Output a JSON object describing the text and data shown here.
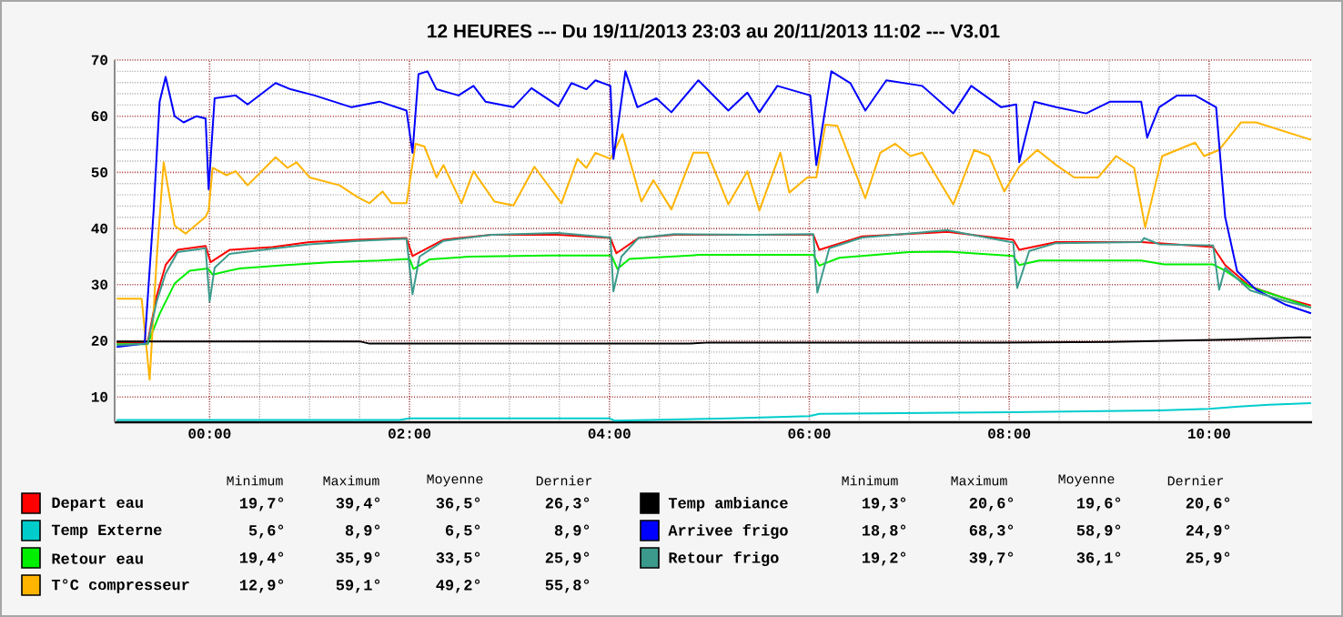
{
  "chart_data": {
    "type": "line",
    "title": "12 HEURES --- Du 19/11/2013 23:03 au 20/11/2013 11:02 --- V3.01",
    "xlim": [
      -0.95,
      11.03
    ],
    "ylim": [
      5.5,
      70
    ],
    "xticks": [
      {
        "value": 0,
        "label": "00:00"
      },
      {
        "value": 2,
        "label": "02:00"
      },
      {
        "value": 4,
        "label": "04:00"
      },
      {
        "value": 6,
        "label": "06:00"
      },
      {
        "value": 8,
        "label": "08:00"
      },
      {
        "value": 10,
        "label": "10:00"
      }
    ],
    "yticks": [
      10,
      20,
      30,
      40,
      50,
      60,
      70
    ],
    "grid": true,
    "legend": "bottom",
    "series": [
      {
        "name": "Depart eau",
        "color": "#ff0000",
        "x": [
          -0.93,
          -0.62,
          -0.53,
          -0.44,
          -0.32,
          -0.04,
          0.01,
          0.2,
          0.63,
          1.0,
          1.48,
          1.97,
          2.03,
          2.34,
          2.82,
          3.49,
          4.01,
          4.07,
          4.29,
          4.65,
          5.44,
          6.04,
          6.1,
          6.53,
          7.38,
          8.04,
          8.1,
          8.47,
          9.32,
          10.04,
          10.16,
          10.41,
          10.77,
          11.02
        ],
        "values": [
          19.7,
          19.7,
          28,
          33.5,
          36.2,
          36.9,
          34,
          36.2,
          36.7,
          37.6,
          38,
          38.3,
          35.1,
          38,
          38.9,
          38.9,
          38.3,
          35.6,
          38.3,
          38.9,
          38.9,
          38.9,
          36.2,
          38.6,
          39.4,
          38,
          36.2,
          37.6,
          37.6,
          36.7,
          33.5,
          29.7,
          27.5,
          26.3
        ]
      },
      {
        "name": "Temp Externe",
        "color": "#00cccc",
        "x": [
          -0.93,
          1.9,
          2.0,
          4.0,
          4.05,
          5.2,
          6.0,
          6.1,
          8.0,
          9.5,
          10.0,
          10.3,
          10.6,
          11.02
        ],
        "values": [
          5.9,
          5.9,
          6.2,
          6.2,
          5.8,
          6.2,
          6.6,
          7.0,
          7.3,
          7.6,
          7.9,
          8.3,
          8.6,
          8.9
        ]
      },
      {
        "name": "Retour eau",
        "color": "#00ee00",
        "x": [
          -0.93,
          -0.62,
          -0.5,
          -0.35,
          -0.2,
          -0.02,
          0.03,
          0.3,
          0.7,
          1.2,
          1.7,
          2.0,
          2.04,
          2.2,
          2.6,
          3.4,
          4.02,
          4.08,
          4.2,
          4.9,
          5.44,
          6.04,
          6.1,
          6.3,
          7.0,
          7.38,
          8.04,
          8.1,
          8.3,
          9.32,
          9.55,
          10.04,
          10.16,
          10.41,
          10.77,
          11.02
        ],
        "values": [
          19.4,
          19.4,
          24.8,
          30.2,
          32.5,
          32.9,
          31.8,
          32.9,
          33.4,
          34,
          34.3,
          34.6,
          32.8,
          34.5,
          35,
          35.2,
          35.2,
          32.8,
          34.6,
          35.3,
          35.3,
          35.3,
          33.4,
          34.8,
          35.8,
          35.9,
          35.1,
          33.5,
          34.3,
          34.3,
          33.6,
          33.6,
          32.5,
          29.6,
          27.5,
          25.9
        ]
      },
      {
        "name": "T°C compresseur",
        "color": "#ffb400",
        "x": [
          -0.93,
          -0.68,
          -0.6,
          -0.53,
          -0.46,
          -0.35,
          -0.24,
          -0.04,
          -0.01,
          0.03,
          0.17,
          0.26,
          0.38,
          0.66,
          0.78,
          0.87,
          1.0,
          1.3,
          1.48,
          1.6,
          1.73,
          1.82,
          1.97,
          2.06,
          2.15,
          2.27,
          2.34,
          2.52,
          2.64,
          2.85,
          3.04,
          3.25,
          3.46,
          3.52,
          3.68,
          3.77,
          3.86,
          4.01,
          4.13,
          4.32,
          4.44,
          4.62,
          4.84,
          4.98,
          5.19,
          5.38,
          5.5,
          5.71,
          5.8,
          5.98,
          6.07,
          6.16,
          6.28,
          6.56,
          6.71,
          6.86,
          7.01,
          7.13,
          7.44,
          7.65,
          7.8,
          7.95,
          8.1,
          8.28,
          8.47,
          8.65,
          8.89,
          9.07,
          9.25,
          9.36,
          9.53,
          9.86,
          9.95,
          10.1,
          10.32,
          10.47,
          11.02
        ],
        "values": [
          27.5,
          27.5,
          13.1,
          34.5,
          51.8,
          40.5,
          39.1,
          42.1,
          43.2,
          50.8,
          49.5,
          50.2,
          47.7,
          52.7,
          50.8,
          51.8,
          49.1,
          47.7,
          45.6,
          44.5,
          46.6,
          44.5,
          44.5,
          55.1,
          54.6,
          49.1,
          51.3,
          44.5,
          50.2,
          44.8,
          44.1,
          51,
          45.9,
          44.5,
          52.4,
          50.8,
          53.5,
          52.4,
          56.8,
          44.8,
          48.6,
          43.4,
          53.5,
          53.5,
          44.3,
          50.2,
          43.2,
          53.5,
          46.4,
          49.1,
          49.1,
          58.5,
          58.3,
          45.4,
          53.5,
          55.1,
          52.9,
          53.5,
          44.3,
          54,
          52.9,
          46.6,
          51,
          54,
          51.3,
          49.1,
          49.1,
          52.9,
          50.8,
          40.2,
          52.9,
          55.3,
          52.9,
          54,
          58.9,
          58.9,
          55.8
        ]
      },
      {
        "name": "Temp ambiance",
        "color": "#000000",
        "x": [
          -0.93,
          1.5,
          1.6,
          4.8,
          5.0,
          7.9,
          9.0,
          10.16,
          10.9,
          11.02
        ],
        "values": [
          19.9,
          19.9,
          19.5,
          19.5,
          19.7,
          19.7,
          19.8,
          20.2,
          20.6,
          20.6
        ]
      },
      {
        "name": "Arrivee frigo",
        "color": "#0000ff",
        "x": [
          -0.93,
          -0.65,
          -0.56,
          -0.5,
          -0.44,
          -0.35,
          -0.26,
          -0.13,
          -0.04,
          -0.01,
          0.05,
          0.26,
          0.38,
          0.66,
          0.81,
          1.05,
          1.42,
          1.7,
          1.97,
          2.03,
          2.09,
          2.18,
          2.27,
          2.49,
          2.64,
          2.76,
          3.04,
          3.22,
          3.49,
          3.62,
          3.77,
          3.86,
          4.01,
          4.04,
          4.16,
          4.28,
          4.47,
          4.62,
          4.89,
          5.19,
          5.38,
          5.5,
          5.68,
          6.01,
          6.07,
          6.22,
          6.41,
          6.56,
          6.77,
          6.95,
          7.13,
          7.44,
          7.62,
          7.92,
          8.07,
          8.1,
          8.25,
          8.47,
          8.77,
          9.01,
          9.32,
          9.38,
          9.5,
          9.68,
          9.86,
          10.07,
          10.16,
          10.28,
          10.47,
          10.77,
          11.02
        ],
        "values": [
          18.9,
          19.5,
          43.2,
          62.6,
          67,
          60,
          58.9,
          60,
          59.6,
          47,
          63.2,
          63.7,
          62.1,
          65.9,
          64.8,
          63.7,
          61.6,
          62.6,
          61,
          53.5,
          67.5,
          68,
          64.8,
          63.7,
          65.4,
          62.6,
          61.6,
          65,
          61.8,
          65.9,
          64.8,
          66.4,
          65.4,
          52.4,
          68,
          61.6,
          63.2,
          60.7,
          66.4,
          61,
          64.2,
          60.7,
          65.4,
          63.7,
          51.3,
          68,
          65.9,
          61,
          66.4,
          65.9,
          65.4,
          60.5,
          65.4,
          61.6,
          62.1,
          51.8,
          62.6,
          61.6,
          60.5,
          62.6,
          62.6,
          56.2,
          61.6,
          63.7,
          63.7,
          61.6,
          42.1,
          32.4,
          29.1,
          26.4,
          24.9
        ]
      },
      {
        "name": "Retour frigo",
        "color": "#3c9a8c",
        "x": [
          -0.93,
          -0.62,
          -0.53,
          -0.44,
          -0.32,
          -0.04,
          0.0,
          0.05,
          0.2,
          0.63,
          1.0,
          1.48,
          1.97,
          2.03,
          2.1,
          2.34,
          2.82,
          3.49,
          4.01,
          4.04,
          4.12,
          4.29,
          4.65,
          5.44,
          6.04,
          6.08,
          6.2,
          6.53,
          7.38,
          8.04,
          8.08,
          8.2,
          8.47,
          9.32,
          9.35,
          9.5,
          10.04,
          10.1,
          10.16,
          10.41,
          10.77,
          11.02
        ],
        "values": [
          19.2,
          19.5,
          27,
          32,
          35.8,
          36.5,
          27,
          33,
          35.5,
          36.4,
          37.2,
          37.8,
          38.2,
          28.3,
          35,
          37.8,
          38.9,
          39.2,
          38.4,
          28.8,
          35,
          38.3,
          39,
          38.9,
          39,
          28.6,
          36.5,
          38.4,
          39.7,
          37.5,
          29.4,
          36,
          37.4,
          37.6,
          38.3,
          37.2,
          37,
          29.1,
          33,
          29,
          27,
          25.9
        ]
      }
    ],
    "annotations": [
      "Minimum",
      "Maximum",
      "Moyenne",
      "Dernier",
      "19,7°",
      "39,4°",
      "36,5°",
      "26,3°",
      "5,6°",
      "8,9°",
      "6,5°",
      "8,9°",
      "19,4°",
      "35,9°",
      "33,5°",
      "25,9°",
      "12,9°",
      "59,1°",
      "49,2°",
      "55,8°",
      "19,3°",
      "20,6°",
      "19,6°",
      "20,6°",
      "18,8°",
      "68,3°",
      "58,9°",
      "24,9°",
      "19,2°",
      "39,7°",
      "36,1°",
      "25,9°"
    ]
  }
}
